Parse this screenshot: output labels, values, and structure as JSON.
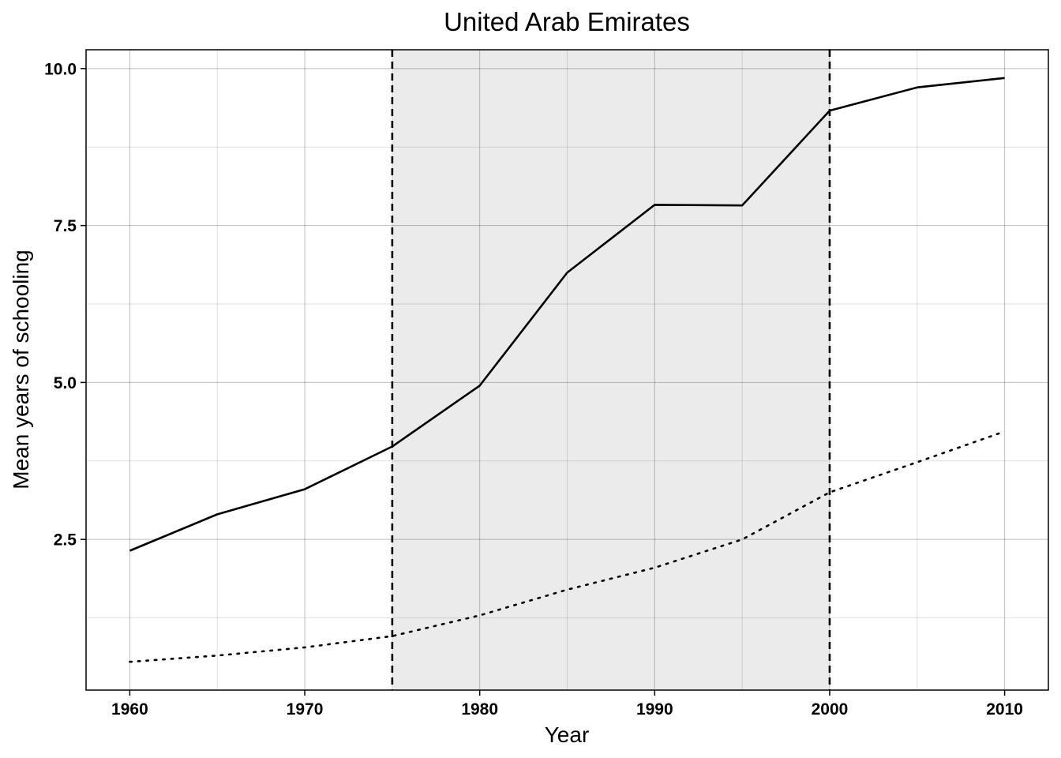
{
  "chart_data": {
    "type": "line",
    "title": "United Arab Emirates",
    "xlabel": "Year",
    "ylabel": "Mean years of schooling",
    "xlim": [
      1957.5,
      2012.5
    ],
    "ylim": [
      0.1,
      10.3
    ],
    "x_ticks": [
      1960,
      1970,
      1980,
      1990,
      2000,
      2010
    ],
    "x_tick_labels": [
      "1960",
      "1970",
      "1980",
      "1990",
      "2000",
      "2010"
    ],
    "y_ticks": [
      2.5,
      5.0,
      7.5,
      10.0
    ],
    "y_tick_labels": [
      "2.5",
      "5.0",
      "7.5",
      "10.0"
    ],
    "grid": true,
    "shaded_region": {
      "x_start": 1975,
      "x_end": 2000,
      "color": "#ebebeb"
    },
    "vertical_lines": [
      1975,
      2000
    ],
    "series": [
      {
        "style": "solid",
        "x": [
          1960,
          1965,
          1970,
          1975,
          1980,
          1985,
          1990,
          1995,
          2000,
          2005,
          2010
        ],
        "values": [
          2.32,
          2.9,
          3.3,
          3.98,
          4.95,
          6.75,
          7.83,
          7.82,
          9.33,
          9.7,
          9.85
        ]
      },
      {
        "style": "dotted",
        "x": [
          1960,
          1965,
          1970,
          1975,
          1980,
          1985,
          1990,
          1995,
          2000,
          2005,
          2010
        ],
        "values": [
          0.55,
          0.65,
          0.78,
          0.96,
          1.29,
          1.7,
          2.05,
          2.5,
          3.25,
          3.73,
          4.22
        ]
      }
    ],
    "colors": {
      "line": "#000000",
      "grid": "#d3d3d3",
      "panel": "#ffffff",
      "shade": "#ebebeb"
    }
  }
}
